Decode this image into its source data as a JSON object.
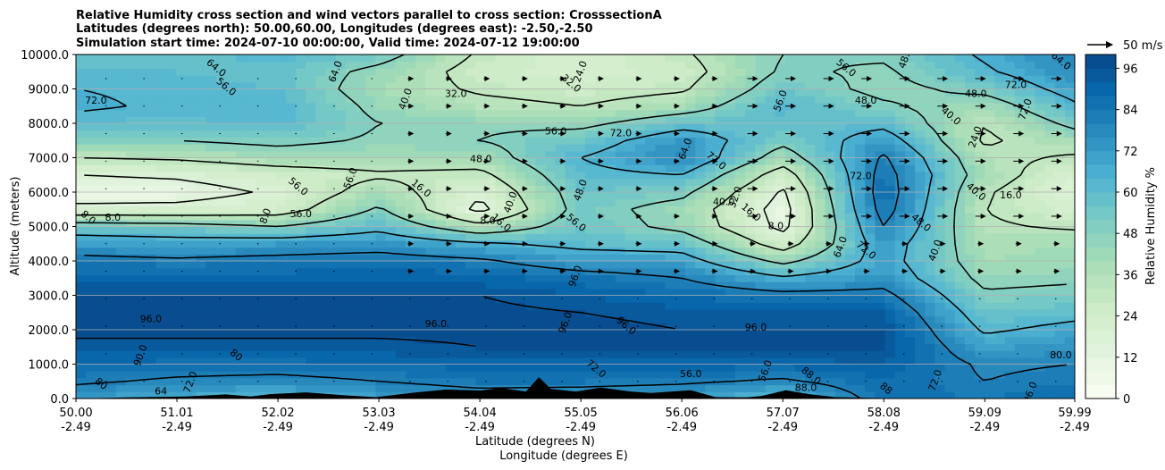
{
  "chart_data": {
    "type": "heatmap",
    "title_lines": [
      "Relative Humidity cross section and wind vectors parallel to cross section: CrosssectionA",
      "Latitudes (degrees north): 50.00,60.00, Longitudes (degrees east): -2.50,-2.50",
      "Simulation start time: 2024-07-10 00:00:00, Valid time: 2024-07-12 19:00:00"
    ],
    "ylabel": "Altitude (meters)",
    "xlabel_lat": "Latitude (degrees N)",
    "xlabel_lon": "Longitude (degrees E)",
    "colorbar_label": "Relative Humidity %",
    "wind_key_label": "50 m/s",
    "ylim": [
      0,
      10000
    ],
    "y_ticks": [
      "0.0",
      "1000.0",
      "2000.0",
      "3000.0",
      "4000.0",
      "5000.0",
      "6000.0",
      "7000.0",
      "8000.0",
      "9000.0",
      "10000.0"
    ],
    "y_tick_values": [
      0,
      1000,
      2000,
      3000,
      4000,
      5000,
      6000,
      7000,
      8000,
      9000,
      10000
    ],
    "x_ticks_lat": [
      "50.00",
      "51.01",
      "52.02",
      "53.03",
      "54.04",
      "55.05",
      "56.06",
      "57.07",
      "58.08",
      "59.09",
      "59.99"
    ],
    "x_ticks_lon": [
      "-2.49",
      "-2.49",
      "-2.49",
      "-2.49",
      "-2.49",
      "-2.49",
      "-2.49",
      "-2.49",
      "-2.49",
      "-2.49",
      "-2.49"
    ],
    "x_tick_values": [
      50.0,
      51.01,
      52.02,
      53.03,
      54.04,
      55.05,
      56.06,
      57.07,
      58.08,
      59.09,
      59.99
    ],
    "xlim": [
      50.0,
      59.99
    ],
    "colorbar_ticks": [
      "0",
      "12",
      "24",
      "36",
      "48",
      "60",
      "72",
      "84",
      "96"
    ],
    "colorbar_range": [
      0,
      100
    ],
    "colormap": [
      "#f7fcf0",
      "#e0f3db",
      "#ccebc5",
      "#a8ddb5",
      "#7bccc4",
      "#4eb3d3",
      "#2b8cbe",
      "#0868ac",
      "#084081"
    ],
    "rh_profile": {
      "altitudes": [
        0,
        500,
        1000,
        1500,
        2000,
        2500,
        3000,
        3500,
        4000,
        4500,
        5000,
        5500,
        6000,
        6500,
        7000,
        7500,
        8000,
        8500,
        9000,
        9500,
        10000
      ],
      "columns": [
        {
          "lat": 50.0,
          "rh": [
            72,
            82,
            88,
            94,
            98,
            98,
            96,
            90,
            84,
            72,
            56,
            20,
            8,
            16,
            32,
            48,
            60,
            66,
            64,
            60,
            56
          ]
        },
        {
          "lat": 51.01,
          "rh": [
            66,
            78,
            86,
            94,
            98,
            98,
            96,
            90,
            82,
            70,
            54,
            20,
            10,
            18,
            34,
            48,
            58,
            62,
            62,
            60,
            58
          ]
        },
        {
          "lat": 52.02,
          "rh": [
            64,
            76,
            86,
            94,
            98,
            98,
            96,
            90,
            84,
            72,
            48,
            24,
            18,
            24,
            40,
            52,
            62,
            64,
            60,
            58,
            62
          ]
        },
        {
          "lat": 53.03,
          "rh": [
            70,
            80,
            88,
            94,
            98,
            98,
            96,
            92,
            86,
            74,
            60,
            50,
            40,
            30,
            40,
            46,
            48,
            44,
            40,
            44,
            54
          ]
        },
        {
          "lat": 54.04,
          "rh": [
            74,
            84,
            90,
            96,
            98,
            98,
            96,
            90,
            82,
            66,
            36,
            12,
            18,
            28,
            40,
            48,
            46,
            36,
            30,
            26,
            30
          ]
        },
        {
          "lat": 55.05,
          "rh": [
            72,
            84,
            90,
            96,
            98,
            96,
            92,
            86,
            72,
            60,
            56,
            54,
            56,
            60,
            64,
            56,
            44,
            32,
            26,
            22,
            20
          ]
        },
        {
          "lat": 56.06,
          "rh": [
            70,
            82,
            90,
            96,
            96,
            94,
            88,
            80,
            70,
            58,
            44,
            42,
            52,
            64,
            78,
            74,
            58,
            40,
            30,
            26,
            30
          ]
        },
        {
          "lat": 57.07,
          "rh": [
            60,
            78,
            90,
            96,
            96,
            92,
            84,
            66,
            44,
            24,
            12,
            10,
            14,
            24,
            40,
            52,
            58,
            62,
            56,
            50,
            48
          ]
        },
        {
          "lat": 58.08,
          "rh": [
            86,
            88,
            92,
            96,
            96,
            92,
            84,
            74,
            70,
            72,
            80,
            86,
            88,
            86,
            82,
            72,
            60,
            50,
            44,
            46,
            50
          ]
        },
        {
          "lat": 59.09,
          "rh": [
            84,
            80,
            78,
            70,
            62,
            56,
            50,
            44,
            40,
            38,
            34,
            32,
            34,
            40,
            36,
            30,
            32,
            40,
            52,
            62,
            66
          ]
        },
        {
          "lat": 59.99,
          "rh": [
            88,
            84,
            80,
            76,
            68,
            60,
            52,
            46,
            42,
            40,
            30,
            22,
            16,
            20,
            30,
            40,
            52,
            62,
            70,
            76,
            80
          ]
        }
      ]
    },
    "contour_labels": [
      {
        "text": "96.0",
        "lat": 50.75,
        "alt": 2300
      },
      {
        "text": "90.0",
        "lat": 50.65,
        "alt": 1250
      },
      {
        "text": "80",
        "lat": 50.25,
        "alt": 420
      },
      {
        "text": "64",
        "lat": 50.85,
        "alt": 200
      },
      {
        "text": "72.0",
        "lat": 51.15,
        "alt": 470
      },
      {
        "text": "8.0",
        "lat": 50.12,
        "alt": 5250
      },
      {
        "text": "8.0",
        "lat": 50.37,
        "alt": 5250
      },
      {
        "text": "8.0",
        "lat": 51.9,
        "alt": 5300
      },
      {
        "text": "56.0",
        "lat": 52.22,
        "alt": 6150
      },
      {
        "text": "56.0",
        "lat": 52.25,
        "alt": 5350
      },
      {
        "text": "56.0",
        "lat": 52.75,
        "alt": 6400
      },
      {
        "text": "56.0",
        "lat": 51.5,
        "alt": 9050
      },
      {
        "text": "72.0",
        "lat": 50.2,
        "alt": 8650
      },
      {
        "text": "64.0",
        "lat": 52.6,
        "alt": 9500
      },
      {
        "text": "64.0",
        "lat": 51.4,
        "alt": 9600
      },
      {
        "text": "32.0",
        "lat": 53.8,
        "alt": 8850
      },
      {
        "text": "40.0",
        "lat": 53.3,
        "alt": 8700
      },
      {
        "text": "16.0",
        "lat": 53.45,
        "alt": 6100
      },
      {
        "text": "48.0",
        "lat": 54.05,
        "alt": 6950
      },
      {
        "text": "40.0",
        "lat": 54.35,
        "alt": 5700
      },
      {
        "text": "16.0",
        "lat": 54.25,
        "alt": 5100
      },
      {
        "text": "8.0",
        "lat": 54.12,
        "alt": 5150
      },
      {
        "text": "24.0",
        "lat": 55.05,
        "alt": 9500
      },
      {
        "text": "32.0",
        "lat": 54.95,
        "alt": 9150
      },
      {
        "text": "56.0",
        "lat": 54.8,
        "alt": 7750
      },
      {
        "text": "48.0",
        "lat": 55.05,
        "alt": 6050
      },
      {
        "text": "56.0",
        "lat": 55.0,
        "alt": 5100
      },
      {
        "text": "72.0",
        "lat": 55.45,
        "alt": 7700
      },
      {
        "text": "64.0",
        "lat": 56.1,
        "alt": 7250
      },
      {
        "text": "72.0",
        "lat": 56.4,
        "alt": 6900
      },
      {
        "text": "40.0",
        "lat": 56.48,
        "alt": 5700
      },
      {
        "text": "32.0",
        "lat": 56.6,
        "alt": 5850
      },
      {
        "text": "16.0",
        "lat": 56.75,
        "alt": 5400
      },
      {
        "text": "8.0",
        "lat": 57.0,
        "alt": 5000
      },
      {
        "text": "56.0",
        "lat": 57.05,
        "alt": 8650
      },
      {
        "text": "56.0",
        "lat": 57.7,
        "alt": 9600
      },
      {
        "text": "48.0",
        "lat": 57.9,
        "alt": 8650
      },
      {
        "text": "64.0",
        "lat": 57.65,
        "alt": 4400
      },
      {
        "text": "72.0",
        "lat": 57.9,
        "alt": 4300
      },
      {
        "text": "72.0",
        "lat": 57.85,
        "alt": 6450
      },
      {
        "text": "48.0",
        "lat": 58.3,
        "alt": 9900
      },
      {
        "text": "40.0",
        "lat": 58.75,
        "alt": 8200
      },
      {
        "text": "48.0",
        "lat": 59.0,
        "alt": 8850
      },
      {
        "text": "24.0",
        "lat": 59.0,
        "alt": 7600
      },
      {
        "text": "40.0",
        "lat": 59.0,
        "alt": 6000
      },
      {
        "text": "16.0",
        "lat": 59.35,
        "alt": 5900
      },
      {
        "text": "40.0",
        "lat": 58.6,
        "alt": 4300
      },
      {
        "text": "48.0",
        "lat": 58.45,
        "alt": 5100
      },
      {
        "text": "72.0",
        "lat": 59.4,
        "alt": 9100
      },
      {
        "text": "72.0",
        "lat": 59.5,
        "alt": 8400
      },
      {
        "text": "64.0",
        "lat": 59.85,
        "alt": 9800
      },
      {
        "text": "96.0",
        "lat": 53.6,
        "alt": 2150
      },
      {
        "text": "96.0",
        "lat": 54.9,
        "alt": 2200
      },
      {
        "text": "96.0",
        "lat": 55.5,
        "alt": 2100
      },
      {
        "text": "96.0",
        "lat": 56.8,
        "alt": 2050
      },
      {
        "text": "96.0",
        "lat": 55.0,
        "alt": 3550
      },
      {
        "text": "72.0",
        "lat": 55.2,
        "alt": 850
      },
      {
        "text": "56.0",
        "lat": 56.15,
        "alt": 700
      },
      {
        "text": "56.0",
        "lat": 56.9,
        "alt": 800
      },
      {
        "text": "88.0",
        "lat": 57.35,
        "alt": 650
      },
      {
        "text": "88.0",
        "lat": 57.3,
        "alt": 300
      },
      {
        "text": "72.0",
        "lat": 58.6,
        "alt": 520
      },
      {
        "text": "88",
        "lat": 58.1,
        "alt": 280
      },
      {
        "text": "80.0",
        "lat": 59.85,
        "alt": 1250
      },
      {
        "text": "96.0",
        "lat": 59.55,
        "alt": 170
      },
      {
        "text": "80",
        "lat": 51.6,
        "alt": 1250
      }
    ],
    "orography": [
      {
        "lat": 50.0,
        "alt": 0
      },
      {
        "lat": 50.5,
        "alt": 30
      },
      {
        "lat": 51.1,
        "alt": 60
      },
      {
        "lat": 51.5,
        "alt": 120
      },
      {
        "lat": 51.75,
        "alt": 60
      },
      {
        "lat": 51.95,
        "alt": 130
      },
      {
        "lat": 52.3,
        "alt": 180
      },
      {
        "lat": 52.7,
        "alt": 90
      },
      {
        "lat": 53.0,
        "alt": 40
      },
      {
        "lat": 53.35,
        "alt": 160
      },
      {
        "lat": 53.7,
        "alt": 260
      },
      {
        "lat": 54.05,
        "alt": 230
      },
      {
        "lat": 54.25,
        "alt": 310
      },
      {
        "lat": 54.5,
        "alt": 200
      },
      {
        "lat": 54.63,
        "alt": 620
      },
      {
        "lat": 54.75,
        "alt": 280
      },
      {
        "lat": 55.0,
        "alt": 200
      },
      {
        "lat": 55.25,
        "alt": 320
      },
      {
        "lat": 55.55,
        "alt": 200
      },
      {
        "lat": 55.75,
        "alt": 160
      },
      {
        "lat": 56.15,
        "alt": 240
      },
      {
        "lat": 56.4,
        "alt": 40
      },
      {
        "lat": 56.8,
        "alt": 30
      },
      {
        "lat": 57.1,
        "alt": 240
      },
      {
        "lat": 57.35,
        "alt": 120
      },
      {
        "lat": 57.6,
        "alt": 40
      },
      {
        "lat": 58.3,
        "alt": 0
      },
      {
        "lat": 59.99,
        "alt": 0
      }
    ]
  }
}
